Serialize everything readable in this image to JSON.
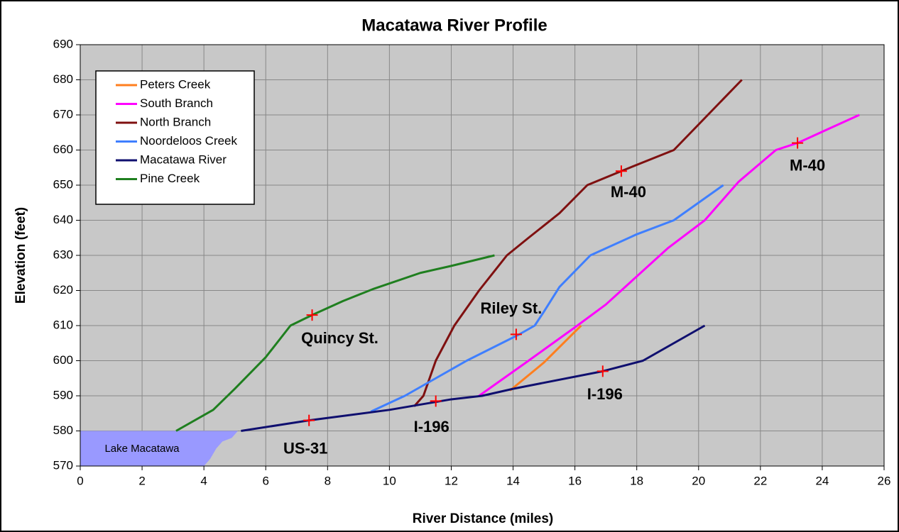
{
  "chart_data": {
    "type": "line",
    "title": "Macatawa River Profile",
    "x_label": "River Distance (miles)",
    "y_label": "Elevation (feet)",
    "xlim": [
      0,
      26
    ],
    "xticks": [
      0,
      2,
      4,
      6,
      8,
      10,
      12,
      14,
      16,
      18,
      20,
      22,
      24,
      26
    ],
    "ylim": [
      570,
      690
    ],
    "yticks": [
      570,
      580,
      590,
      600,
      610,
      620,
      630,
      640,
      650,
      660,
      670,
      680,
      690
    ],
    "grid": true,
    "legend": "upper left",
    "series": [
      {
        "name": "Peters Creek",
        "color": "#ff7f1f",
        "x": [
          13.9,
          15,
          16.2
        ],
        "values": [
          591.5,
          599.5,
          610
        ]
      },
      {
        "name": "South Branch",
        "color": "#ff00ff",
        "x": [
          12.9,
          14.5,
          16,
          17,
          18,
          19,
          20.2,
          21.3,
          22.5,
          23.2,
          24.2,
          25.2
        ],
        "values": [
          590,
          600,
          609.5,
          616,
          624,
          632,
          640,
          651,
          660,
          662,
          666,
          670
        ]
      },
      {
        "name": "North Branch",
        "color": "#7f1010",
        "x": [
          10.8,
          11.1,
          11.5,
          12.1,
          12.9,
          13.8,
          14.5,
          15.5,
          16.4,
          17.5,
          19.2,
          20.3,
          21.4
        ],
        "values": [
          587,
          590,
          600,
          610,
          620,
          630,
          635,
          642,
          650,
          654,
          660,
          670,
          680
        ]
      },
      {
        "name": "Noordeloos Creek",
        "color": "#3f7fff",
        "x": [
          9.4,
          10.5,
          11.5,
          12.5,
          14.2,
          14.7,
          15,
          15.5,
          16.5,
          18,
          19.2,
          20.8
        ],
        "values": [
          585.5,
          590,
          595,
          600,
          607.5,
          610,
          614,
          621,
          630,
          636,
          640,
          650
        ]
      },
      {
        "name": "Macatawa River",
        "color": "#0f0f6f",
        "x": [
          5.2,
          7.4,
          10,
          12,
          13,
          14,
          16.9,
          18.2,
          20.2
        ],
        "values": [
          580,
          583,
          586,
          589,
          590,
          592,
          597,
          600,
          610
        ]
      },
      {
        "name": "Pine Creek",
        "color": "#1f7f1f",
        "x": [
          3.1,
          4.3,
          5,
          6,
          6.8,
          7.5,
          8.5,
          9.5,
          11,
          12,
          13.4
        ],
        "values": [
          580,
          586,
          592,
          601,
          610,
          613,
          617,
          620.5,
          625,
          627,
          630
        ]
      }
    ],
    "lake": {
      "label": "Lake Macatawa",
      "color": "#9999ff",
      "x": [
        0,
        5.1,
        4.9,
        4.6,
        4.4,
        4.2,
        4.0,
        0
      ],
      "y": [
        580,
        580,
        578,
        577,
        575,
        572,
        570,
        570
      ]
    },
    "annotations": [
      {
        "label": "Quincy St.",
        "x": 7.5,
        "y": 613
      },
      {
        "label": "US-31",
        "x": 7.4,
        "y": 583
      },
      {
        "label": "I-196",
        "x": 11.5,
        "y": 588.5
      },
      {
        "label": "Riley St.",
        "x": 14.1,
        "y": 607.5
      },
      {
        "label": "I-196",
        "x": 16.9,
        "y": 597
      },
      {
        "label": "M-40",
        "x": 17.5,
        "y": 654
      },
      {
        "label": "M-40",
        "x": 23.2,
        "y": 662
      }
    ],
    "marker_color": "#ff0000"
  }
}
